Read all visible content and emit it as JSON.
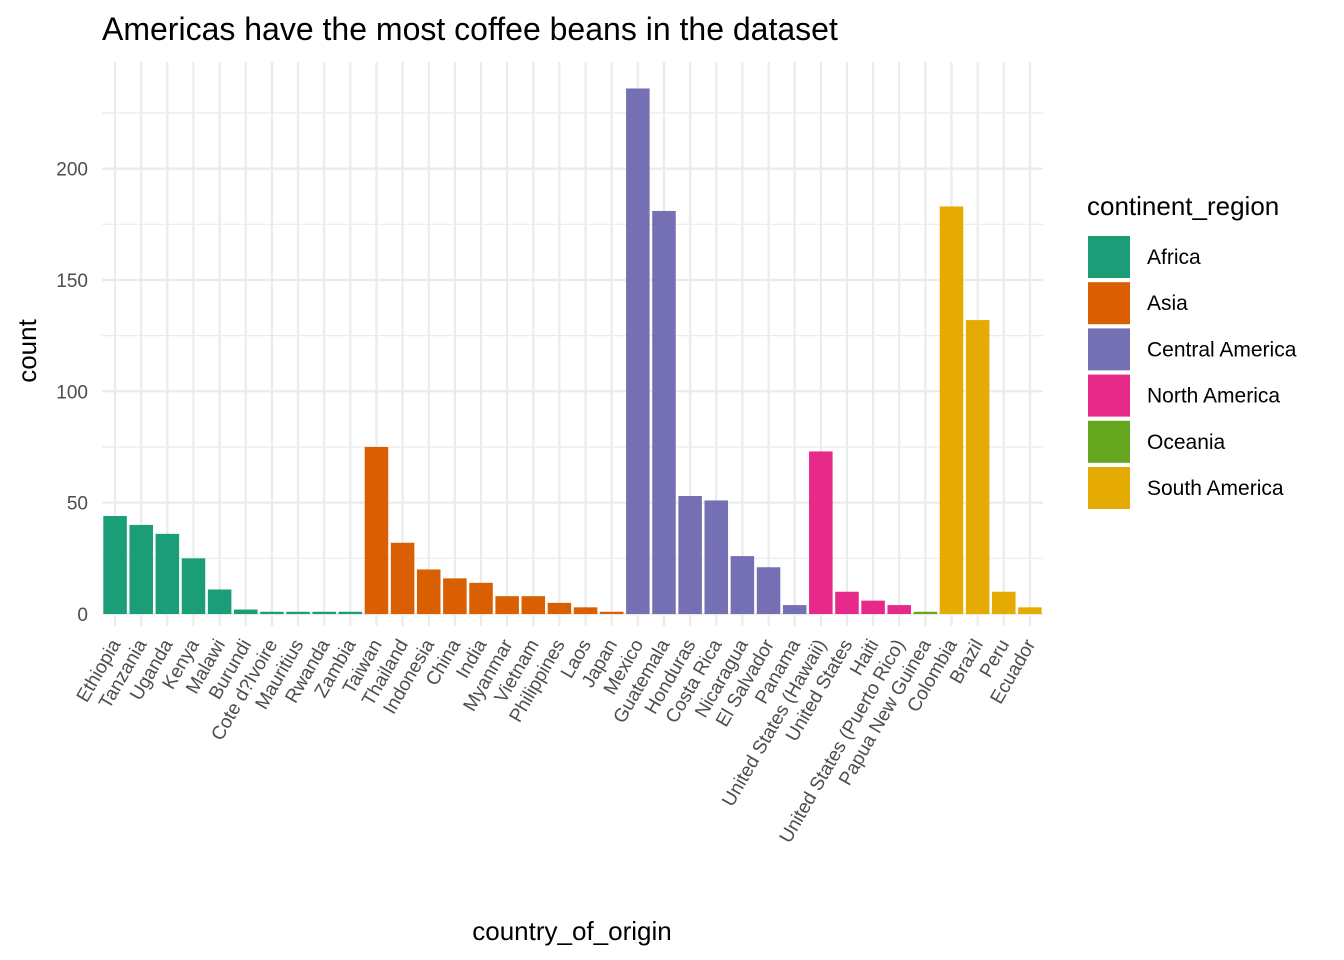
{
  "chart_data": {
    "type": "bar",
    "title": "Americas have the most coffee beans in the dataset",
    "xlabel": "country_of_origin",
    "ylabel": "count",
    "ylim": [
      0,
      236
    ],
    "y_ticks": [
      0,
      50,
      100,
      150,
      200
    ],
    "grid": true,
    "legend": {
      "title": "continent_region",
      "placement": "right",
      "entries": [
        {
          "name": "Africa",
          "color": "#1b9e77"
        },
        {
          "name": "Asia",
          "color": "#d95f02"
        },
        {
          "name": "Central America",
          "color": "#7570b3"
        },
        {
          "name": "North America",
          "color": "#e7298a"
        },
        {
          "name": "Oceania",
          "color": "#66a61e"
        },
        {
          "name": "South America",
          "color": "#e6ab02"
        }
      ]
    },
    "categories": [
      "Ethiopia",
      "Tanzania",
      "Uganda",
      "Kenya",
      "Malawi",
      "Burundi",
      "Cote d?Ivoire",
      "Mauritius",
      "Rwanda",
      "Zambia",
      "Taiwan",
      "Thailand",
      "Indonesia",
      "China",
      "India",
      "Myanmar",
      "Vietnam",
      "Philippines",
      "Laos",
      "Japan",
      "Mexico",
      "Guatemala",
      "Honduras",
      "Costa Rica",
      "Nicaragua",
      "El Salvador",
      "Panama",
      "United States (Hawaii)",
      "United States",
      "Haiti",
      "United States (Puerto Rico)",
      "Papua New Guinea",
      "Colombia",
      "Brazil",
      "Peru",
      "Ecuador"
    ],
    "values": [
      44,
      40,
      36,
      25,
      11,
      2,
      1,
      1,
      1,
      1,
      75,
      32,
      20,
      16,
      14,
      8,
      8,
      5,
      3,
      1,
      236,
      181,
      53,
      51,
      26,
      21,
      4,
      73,
      10,
      6,
      4,
      1,
      183,
      132,
      10,
      3
    ],
    "groups": [
      "Africa",
      "Africa",
      "Africa",
      "Africa",
      "Africa",
      "Africa",
      "Africa",
      "Africa",
      "Africa",
      "Africa",
      "Asia",
      "Asia",
      "Asia",
      "Asia",
      "Asia",
      "Asia",
      "Asia",
      "Asia",
      "Asia",
      "Asia",
      "Central America",
      "Central America",
      "Central America",
      "Central America",
      "Central America",
      "Central America",
      "Central America",
      "North America",
      "North America",
      "North America",
      "North America",
      "Oceania",
      "South America",
      "South America",
      "South America",
      "South America"
    ]
  }
}
